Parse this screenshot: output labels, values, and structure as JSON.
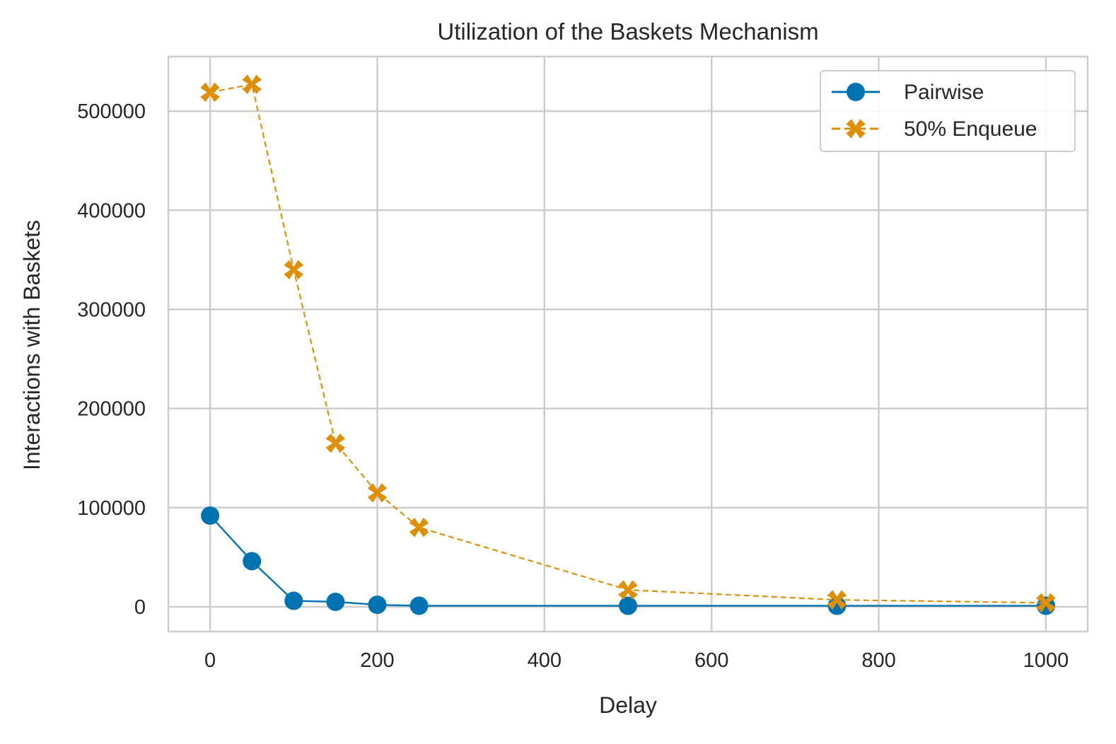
{
  "chart_data": {
    "type": "line",
    "title": "Utilization of the Baskets Mechanism",
    "xlabel": "Delay",
    "ylabel": "Interactions with Baskets",
    "xlim": [
      -50,
      1050
    ],
    "ylim": [
      -25000,
      555000
    ],
    "xticks": [
      0,
      200,
      400,
      600,
      800,
      1000
    ],
    "yticks": [
      0,
      100000,
      200000,
      300000,
      400000,
      500000
    ],
    "xtick_labels": [
      "0",
      "200",
      "400",
      "600",
      "800",
      "1000"
    ],
    "ytick_labels": [
      "0",
      "100000",
      "200000",
      "300000",
      "400000",
      "500000"
    ],
    "grid": true,
    "legend_position": "top-right",
    "series": [
      {
        "name": "Pairwise",
        "color": "#0072b2",
        "marker": "circle",
        "line_style": "solid",
        "x": [
          0,
          50,
          100,
          150,
          200,
          250,
          500,
          750,
          1000
        ],
        "y": [
          92000,
          46000,
          6000,
          5000,
          2000,
          1000,
          1000,
          1000,
          1000
        ]
      },
      {
        "name": "50% Enqueue",
        "color": "#de8f05",
        "marker": "x",
        "line_style": "dashed",
        "x": [
          0,
          50,
          100,
          150,
          200,
          250,
          500,
          750,
          1000
        ],
        "y": [
          519000,
          527000,
          340000,
          165000,
          115000,
          80000,
          17000,
          7000,
          4000
        ]
      }
    ]
  }
}
